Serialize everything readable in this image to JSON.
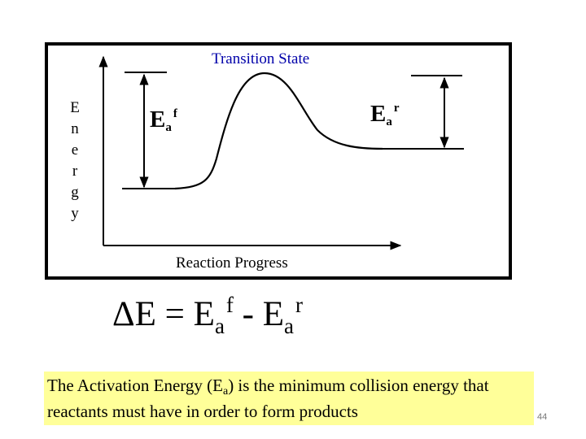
{
  "diagram": {
    "title": "Transition State",
    "y_axis_letters": [
      "E",
      "n",
      "e",
      "r",
      "g",
      "y"
    ],
    "x_axis_label": "Reaction Progress",
    "ea_forward": {
      "base": "E",
      "sub": "a",
      "sup": "f"
    },
    "ea_reverse": {
      "base": "E",
      "sub": "a",
      "sup": "r"
    }
  },
  "equation": {
    "lhs": "ΔE = E",
    "sub1": "a",
    "sup1": "f",
    "mid": " - E",
    "sub2": "a",
    "sup2": "r"
  },
  "note": {
    "text_start": "The Activation Energy (E",
    "sub": "a",
    "text_end": ") is the minimum collision energy that reactants must have in order to form products",
    "background": "#ffff99"
  },
  "page_number": "44",
  "colors": {
    "title": "#0000aa",
    "frame": "#000000"
  }
}
